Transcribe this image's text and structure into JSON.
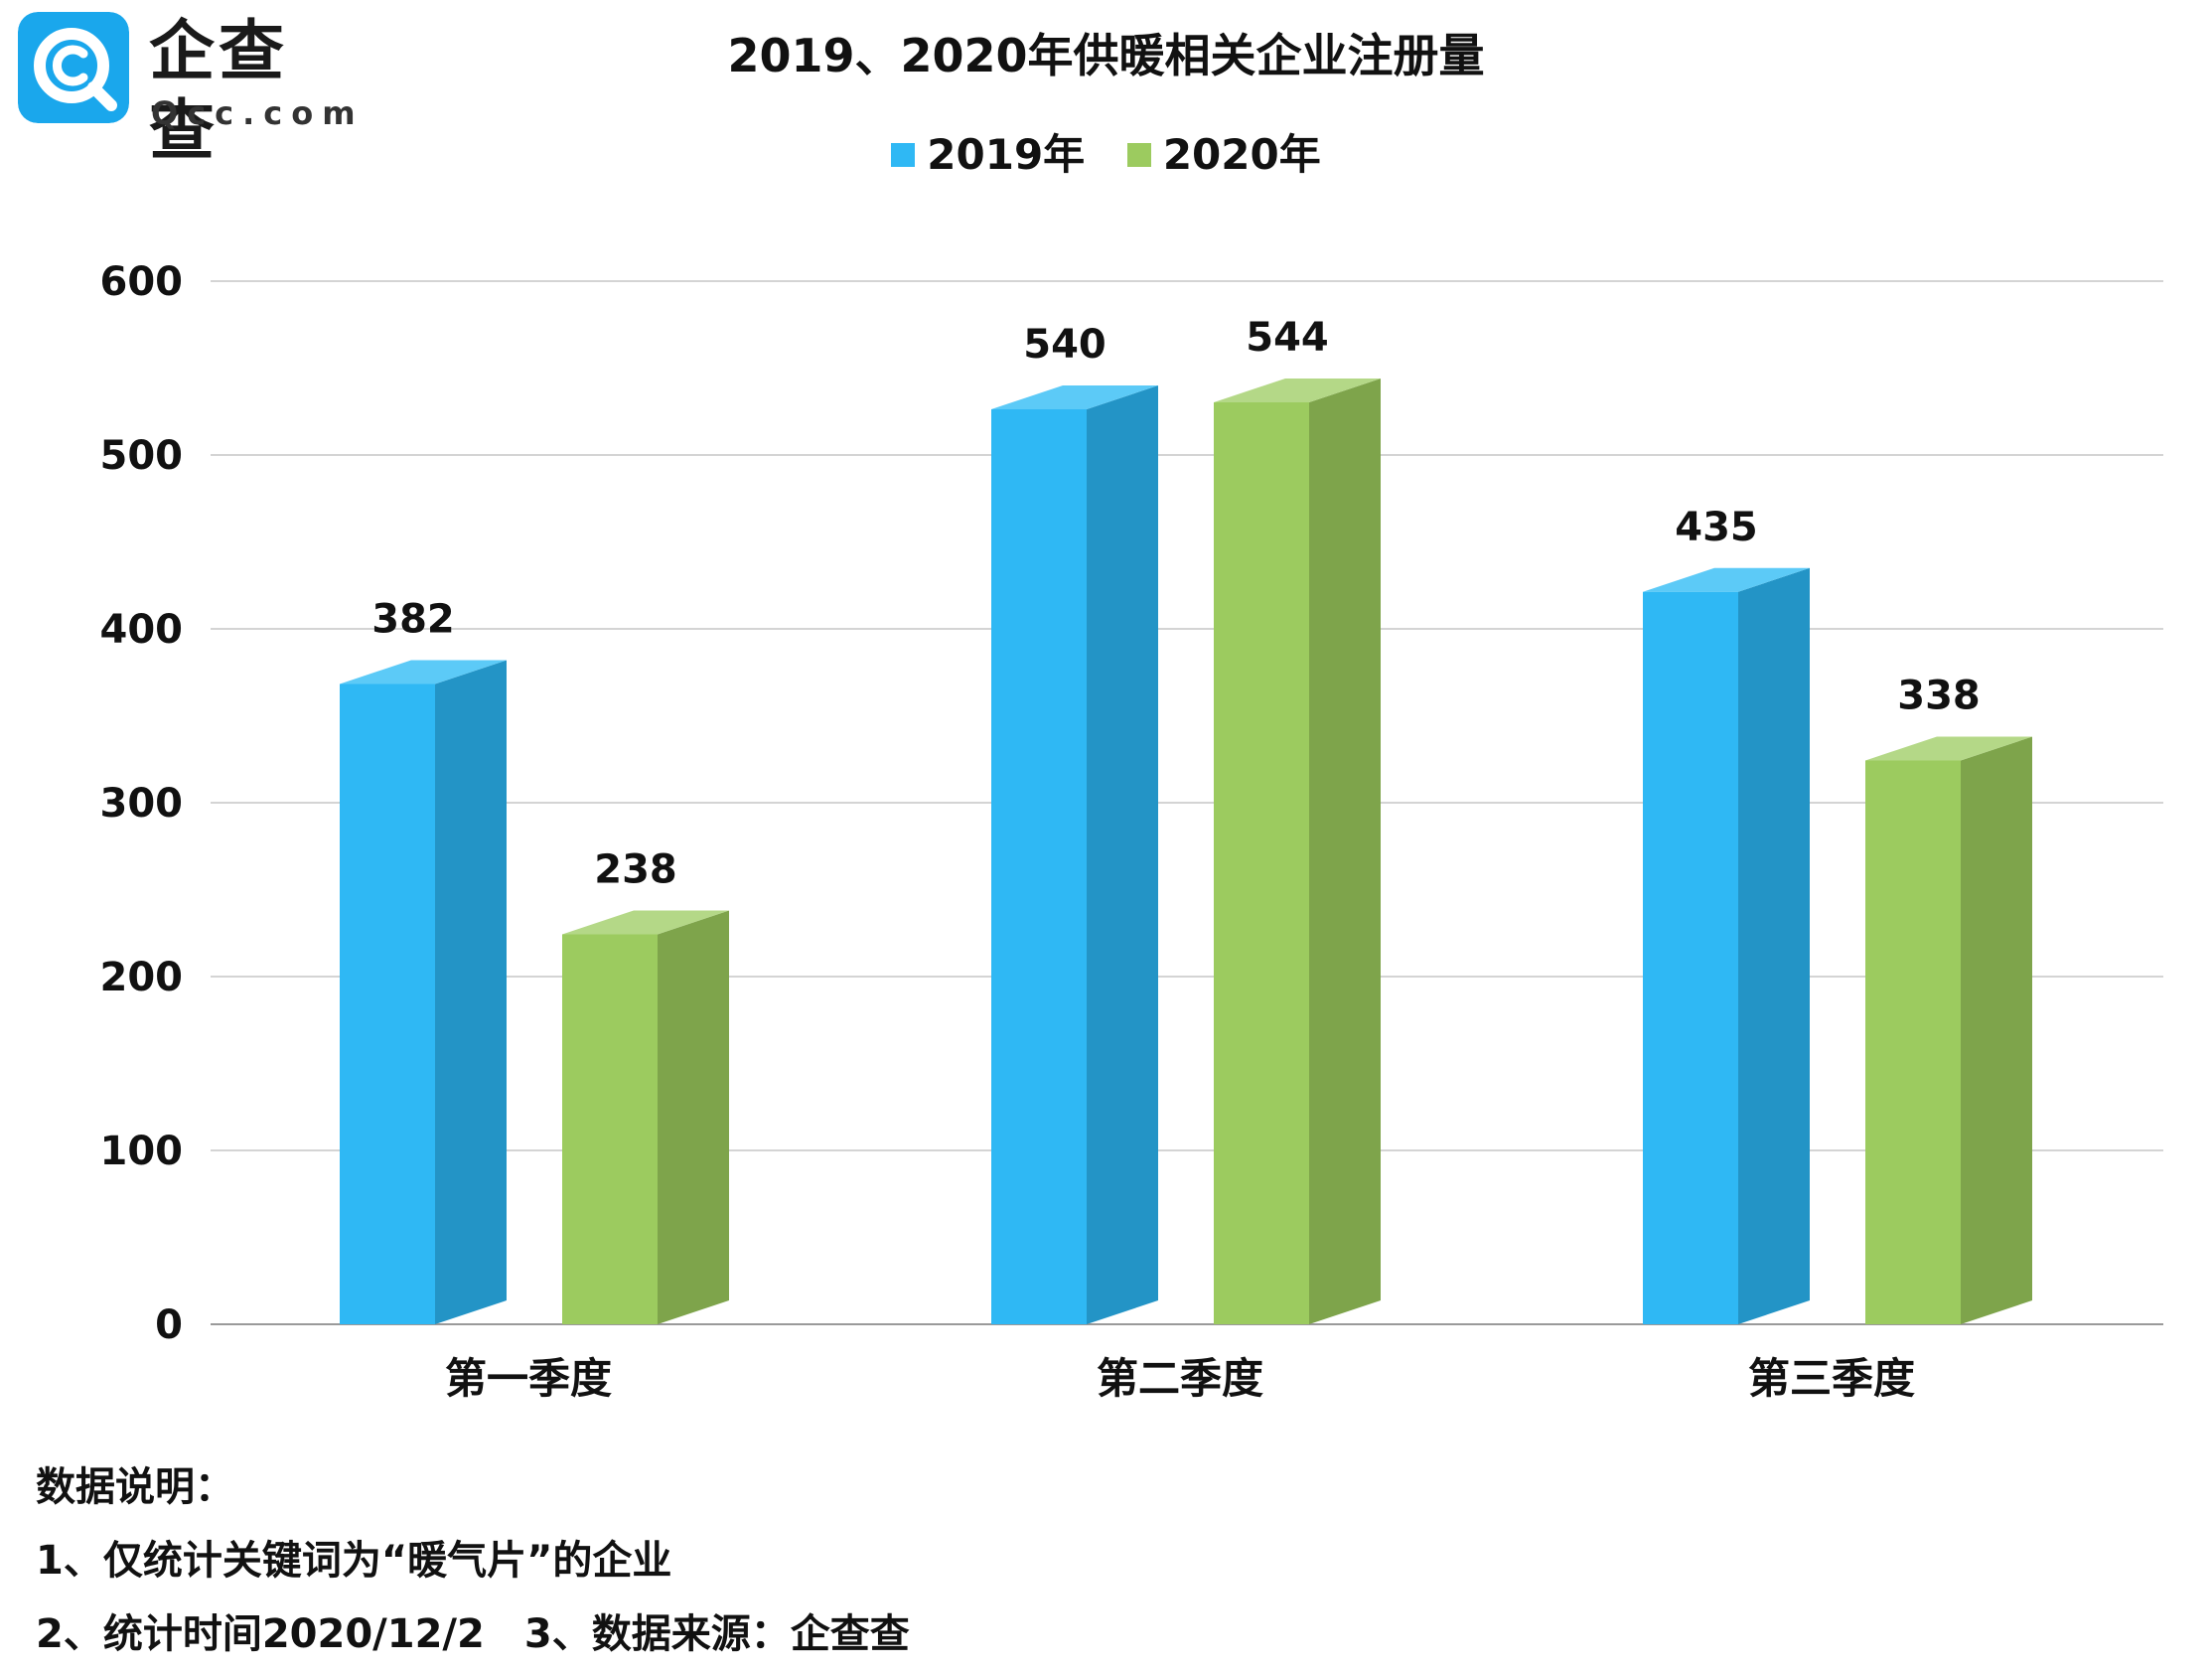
{
  "logo": {
    "name": "企查查",
    "domain": "Qcc.com",
    "badge_color": "#1aa7ec"
  },
  "chart_data": {
    "type": "bar",
    "title": "2019、2020年供暖相关企业注册量",
    "categories": [
      "第一季度",
      "第二季度",
      "第三季度"
    ],
    "series": [
      {
        "name": "2019年",
        "values": [
          382,
          540,
          435
        ],
        "color": "#2fb8f4",
        "side_color": "#2394c6",
        "top_color": "#5ccaf7"
      },
      {
        "name": "2020年",
        "values": [
          238,
          544,
          338
        ],
        "color": "#9ccb5f",
        "side_color": "#7ea44b",
        "top_color": "#b4d887"
      }
    ],
    "ylim": [
      0,
      600
    ],
    "yticks": [
      0,
      100,
      200,
      300,
      400,
      500,
      600
    ],
    "grid": true,
    "legend_position": "top-center",
    "xlabel": "",
    "ylabel": ""
  },
  "notes": {
    "heading": "数据说明：",
    "line1": "1、仅统计关键词为“暖气片”的企业",
    "line2": "2、统计时间2020/12/2　3、数据来源：企查查"
  }
}
